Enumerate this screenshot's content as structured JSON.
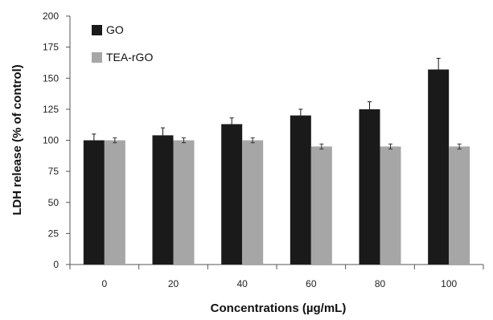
{
  "chart_data": {
    "type": "bar",
    "categories": [
      "0",
      "20",
      "40",
      "60",
      "80",
      "100"
    ],
    "series": [
      {
        "name": "GO",
        "values": [
          100,
          104,
          113,
          120,
          125,
          157
        ],
        "errors": [
          5,
          6,
          5,
          5,
          6,
          9
        ],
        "color": "#1a1a1a"
      },
      {
        "name": "TEA-rGO",
        "values": [
          100,
          100,
          100,
          95,
          95,
          95
        ],
        "errors": [
          2,
          2,
          2,
          2,
          2,
          2
        ],
        "color": "#a6a6a6"
      }
    ],
    "xlabel": "Concentrations (µg/mL)",
    "ylabel": "LDH release (% of control)",
    "ylim": [
      0,
      200
    ],
    "yticks": [
      "0",
      "25",
      "50",
      "75",
      "100",
      "125",
      "150",
      "175",
      "200"
    ],
    "grid": false,
    "legend_position": "top-left"
  }
}
